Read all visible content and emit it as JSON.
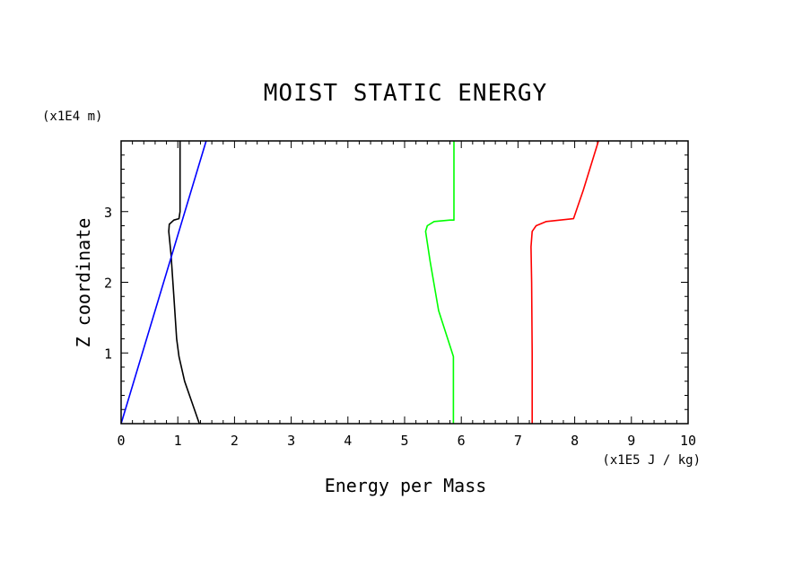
{
  "chart_data": {
    "type": "line",
    "title": "MOIST STATIC ENERGY",
    "xlabel": "Energy per Mass",
    "ylabel": "Z coordinate",
    "x_unit": "(x1E5 J / kg)",
    "y_unit": "(x1E4 m)",
    "xlim": [
      0,
      10
    ],
    "ylim": [
      0,
      4
    ],
    "x_ticks": [
      "0",
      "1",
      "2",
      "3",
      "4",
      "5",
      "6",
      "7",
      "8",
      "9",
      "10"
    ],
    "y_ticks": [
      "1",
      "2",
      "3"
    ],
    "grid": false,
    "series": [
      {
        "color": "#000000",
        "points": [
          [
            1.38,
            0
          ],
          [
            1.25,
            0.3
          ],
          [
            1.12,
            0.6
          ],
          [
            1.02,
            0.95
          ],
          [
            0.98,
            1.2
          ],
          [
            0.93,
            1.8
          ],
          [
            0.88,
            2.4
          ],
          [
            0.84,
            2.72
          ],
          [
            0.85,
            2.82
          ],
          [
            0.93,
            2.88
          ],
          [
            1.02,
            2.9
          ],
          [
            1.04,
            3.0
          ],
          [
            1.04,
            4.0
          ]
        ]
      },
      {
        "color": "#0000ff",
        "points": [
          [
            0,
            0
          ],
          [
            1.5,
            4.0
          ]
        ]
      },
      {
        "color": "#00ff00",
        "points": [
          [
            5.86,
            0
          ],
          [
            5.86,
            0.95
          ],
          [
            5.8,
            1.1
          ],
          [
            5.6,
            1.6
          ],
          [
            5.45,
            2.3
          ],
          [
            5.37,
            2.72
          ],
          [
            5.4,
            2.8
          ],
          [
            5.52,
            2.86
          ],
          [
            5.8,
            2.88
          ],
          [
            5.87,
            2.88
          ],
          [
            5.87,
            4.0
          ]
        ]
      },
      {
        "color": "#ff0000",
        "points": [
          [
            7.25,
            0
          ],
          [
            7.25,
            1.0
          ],
          [
            7.24,
            2.0
          ],
          [
            7.23,
            2.5
          ],
          [
            7.25,
            2.72
          ],
          [
            7.32,
            2.8
          ],
          [
            7.5,
            2.86
          ],
          [
            7.98,
            2.9
          ],
          [
            8.15,
            3.3
          ],
          [
            8.42,
            4.0
          ]
        ]
      }
    ]
  }
}
